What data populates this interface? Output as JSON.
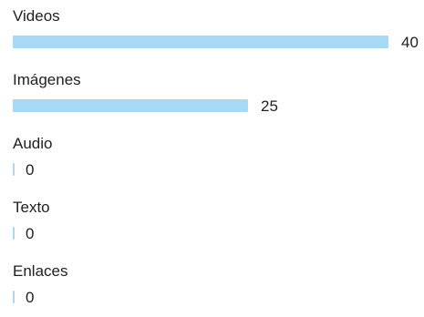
{
  "chart_data": {
    "type": "bar",
    "orientation": "horizontal",
    "categories": [
      "Videos",
      "Imágenes",
      "Audio",
      "Texto",
      "Enlaces"
    ],
    "values": [
      40,
      25,
      0,
      0,
      0
    ],
    "value_labels": [
      "40",
      "25",
      "0",
      "0",
      "0"
    ],
    "bar_color": "#a7d8f4",
    "grid": false,
    "legend": "none"
  }
}
